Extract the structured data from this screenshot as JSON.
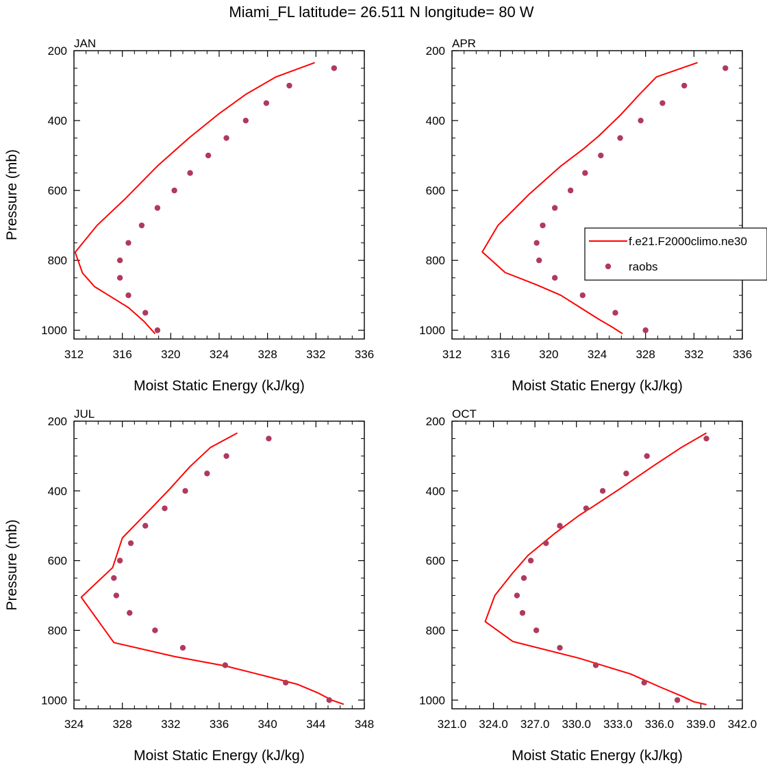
{
  "title": "Miami_FL  latitude= 26.511 N longitude= 80 W",
  "legend": {
    "model_label": "f.e21.F2000climo.ne30",
    "obs_label": "raobs",
    "model_color": "#ff0000",
    "obs_color": "#b03a5b"
  },
  "chart_data": [
    {
      "type": "line",
      "panel": "JAN",
      "xlabel": "Moist Static Energy (kJ/kg)",
      "ylabel": "Pressure (mb)",
      "xlim": [
        312,
        336
      ],
      "ylim": [
        200,
        1025
      ],
      "y_inverted": true,
      "xticks": [
        312,
        316,
        320,
        324,
        328,
        332,
        336
      ],
      "xtick_labels": [
        "312",
        "316",
        "320",
        "324",
        "328",
        "332",
        "336"
      ],
      "yticks": [
        200,
        400,
        600,
        800,
        1000
      ],
      "ytick_labels": [
        "200",
        "400",
        "600",
        "800",
        "1000"
      ],
      "series": [
        {
          "name": "f.e21.F2000climo.ne30",
          "style": "line",
          "x": [
            331.9,
            328.7,
            326.2,
            324.0,
            321.5,
            318.9,
            316.2,
            313.9,
            312.1,
            312.7,
            313.7,
            315.1,
            316.5,
            317.8,
            318.7
          ],
          "y": [
            234,
            275,
            325,
            380,
            450,
            530,
            625,
            700,
            777,
            836,
            875,
            905,
            935,
            975,
            1010
          ]
        },
        {
          "name": "raobs",
          "style": "marker",
          "x": [
            333.5,
            329.8,
            327.9,
            326.2,
            324.6,
            323.1,
            321.6,
            320.3,
            318.9,
            317.6,
            316.5,
            315.8,
            315.8,
            316.5,
            317.9,
            318.9
          ],
          "y": [
            250,
            300,
            350,
            400,
            450,
            500,
            550,
            600,
            650,
            700,
            750,
            800,
            850,
            900,
            950,
            1000
          ]
        }
      ]
    },
    {
      "type": "line",
      "panel": "APR",
      "xlabel": "Moist Static Energy (kJ/kg)",
      "ylabel": "",
      "xlim": [
        312,
        336
      ],
      "ylim": [
        200,
        1025
      ],
      "y_inverted": true,
      "xticks": [
        312,
        316,
        320,
        324,
        328,
        332,
        336
      ],
      "xtick_labels": [
        "312",
        "316",
        "320",
        "324",
        "328",
        "332",
        "336"
      ],
      "yticks": [
        200,
        400,
        600,
        800,
        1000
      ],
      "ytick_labels": [
        "200",
        "400",
        "600",
        "800",
        "1000"
      ],
      "series": [
        {
          "name": "f.e21.F2000climo.ne30",
          "style": "line",
          "x": [
            332.3,
            328.9,
            327.5,
            325.9,
            324.1,
            322.9,
            321.0,
            318.4,
            315.8,
            314.5,
            316.4,
            319.0,
            321.0,
            322.6,
            324.2,
            325.2,
            326.1
          ],
          "y": [
            234,
            275,
            325,
            385,
            445,
            480,
            530,
            610,
            700,
            776,
            835,
            870,
            900,
            935,
            970,
            990,
            1010
          ]
        },
        {
          "name": "raobs",
          "style": "marker",
          "x": [
            334.6,
            331.2,
            329.4,
            327.6,
            325.9,
            324.3,
            323.0,
            321.8,
            320.5,
            319.5,
            319.0,
            319.2,
            320.5,
            322.8,
            325.5,
            328.0
          ],
          "y": [
            250,
            300,
            350,
            400,
            450,
            500,
            550,
            600,
            650,
            700,
            750,
            800,
            850,
            900,
            950,
            1000
          ]
        }
      ]
    },
    {
      "type": "line",
      "panel": "JUL",
      "xlabel": "Moist Static Energy (kJ/kg)",
      "ylabel": "Pressure (mb)",
      "xlim": [
        324,
        348
      ],
      "ylim": [
        200,
        1025
      ],
      "y_inverted": true,
      "xticks": [
        324,
        328,
        332,
        336,
        340,
        344,
        348
      ],
      "xtick_labels": [
        "324",
        "328",
        "332",
        "336",
        "340",
        "344",
        "348"
      ],
      "yticks": [
        200,
        400,
        600,
        800,
        1000
      ],
      "ytick_labels": [
        "200",
        "400",
        "600",
        "800",
        "1000"
      ],
      "series": [
        {
          "name": "f.e21.F2000climo.ne30",
          "style": "line",
          "x": [
            337.5,
            335.3,
            333.6,
            331.9,
            330.1,
            328.0,
            327.2,
            324.6,
            327.3,
            332.3,
            336.5,
            339.7,
            342.5,
            344.2,
            345.3,
            346.3
          ],
          "y": [
            234,
            275,
            330,
            395,
            460,
            535,
            620,
            705,
            835,
            875,
            902,
            930,
            955,
            980,
            1000,
            1012
          ]
        },
        {
          "name": "raobs",
          "style": "marker",
          "x": [
            340.1,
            336.6,
            335.0,
            333.2,
            331.5,
            329.9,
            328.7,
            327.8,
            327.3,
            327.5,
            328.6,
            330.7,
            333.0,
            336.5,
            341.5,
            345.1
          ],
          "y": [
            250,
            300,
            350,
            400,
            450,
            500,
            550,
            600,
            650,
            700,
            750,
            800,
            850,
            900,
            950,
            1000
          ]
        }
      ]
    },
    {
      "type": "line",
      "panel": "OCT",
      "xlabel": "Moist Static Energy (kJ/kg)",
      "ylabel": "",
      "xlim": [
        321,
        342
      ],
      "ylim": [
        200,
        1025
      ],
      "y_inverted": true,
      "xticks": [
        321,
        324,
        327,
        330,
        333,
        336,
        339,
        342
      ],
      "xtick_labels": [
        "321.0",
        "324.0",
        "327.0",
        "330.0",
        "333.0",
        "336.0",
        "339.0",
        "342.0"
      ],
      "yticks": [
        200,
        400,
        600,
        800,
        1000
      ],
      "ytick_labels": [
        "200",
        "400",
        "600",
        "800",
        "1000"
      ],
      "series": [
        {
          "name": "f.e21.F2000climo.ne30",
          "style": "line",
          "x": [
            339.4,
            337.6,
            335.5,
            333.3,
            331.2,
            330.2,
            328.5,
            326.5,
            325.4,
            324.1,
            323.4,
            325.4,
            330.2,
            333.9,
            336.2,
            337.7,
            338.5,
            339.4
          ],
          "y": [
            234,
            275,
            330,
            390,
            445,
            470,
            520,
            585,
            635,
            700,
            775,
            832,
            880,
            925,
            965,
            990,
            1005,
            1013
          ]
        },
        {
          "name": "raobs",
          "style": "marker",
          "x": [
            339.4,
            335.1,
            333.6,
            331.9,
            330.7,
            328.8,
            327.8,
            326.7,
            326.2,
            325.7,
            326.1,
            327.1,
            328.8,
            331.4,
            334.9,
            337.3
          ],
          "y": [
            250,
            300,
            350,
            400,
            450,
            500,
            550,
            600,
            650,
            700,
            750,
            800,
            850,
            900,
            950,
            1000
          ]
        }
      ]
    }
  ]
}
